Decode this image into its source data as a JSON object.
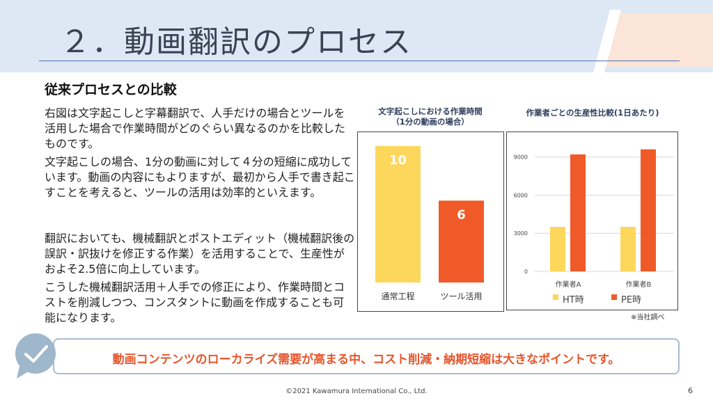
{
  "slide": {
    "title": "２．動画翻訳のプロセス",
    "subheading": "従来プロセスとの比較",
    "paragraphs": [
      "右図は文字起こしと字幕翻訳で、人手だけの場合とツールを活用した場合で作業時間がどのぐらい異なるのかを比較したものです。",
      "文字起こしの場合、1分の動画に対して４分の短縮に成功しています。動画の内容にもよりますが、最初から人手で書き起こすことを考えると、ツールの活用は効率的といえます。",
      "翻訳においても、機械翻訳とポストエディット（機械翻訳後の誤訳・訳抜けを修正する作業）を活用することで、生産性がおよそ2.5倍に向上しています。",
      "こうした機械翻訳活用＋人手での修正により、作業時間とコストを削減しつつ、コンスタントに動画を作成することも可能になります。"
    ],
    "note": "※当社調べ",
    "banner": "動画コンテンツのローカライズ需要が高まる中、コスト削減・納期短縮は大きなポイントです。",
    "footer": "©2021 Kawamura International Co., Ltd.",
    "page_number": "6",
    "colors": {
      "yellow": "#fdd75c",
      "orange": "#f05a28",
      "title": "#3b4253",
      "accent": "#e8552b"
    }
  },
  "chart_data": [
    {
      "type": "bar",
      "title": "文字起こしにおける作業時間（1分の動画の場合）",
      "title_lines": [
        "文字起こしにおける作業時間",
        "（1分の動画の場合）"
      ],
      "categories": [
        "通常工程",
        "ツール活用"
      ],
      "values": [
        10,
        6
      ],
      "data_labels": [
        "10",
        "6"
      ],
      "bar_colors": [
        "#fdd75c",
        "#f05a28"
      ],
      "ylim": [
        0,
        10.5
      ],
      "grid": false
    },
    {
      "type": "bar",
      "title": "作業者ごとの生産性比較(1日あたり)",
      "categories": [
        "作業者A",
        "作業者B"
      ],
      "series": [
        {
          "name": "HT時",
          "values": [
            3500,
            3500
          ],
          "color": "#fdd75c"
        },
        {
          "name": "PE時",
          "values": [
            9200,
            9600
          ],
          "color": "#f05a28"
        }
      ],
      "ticks": [
        0,
        3000,
        6000,
        9000
      ],
      "tick_labels": [
        "0",
        "3000",
        "6000",
        "9000"
      ],
      "ylim": [
        0,
        10400
      ],
      "grid": true,
      "legend": "bottom"
    }
  ]
}
